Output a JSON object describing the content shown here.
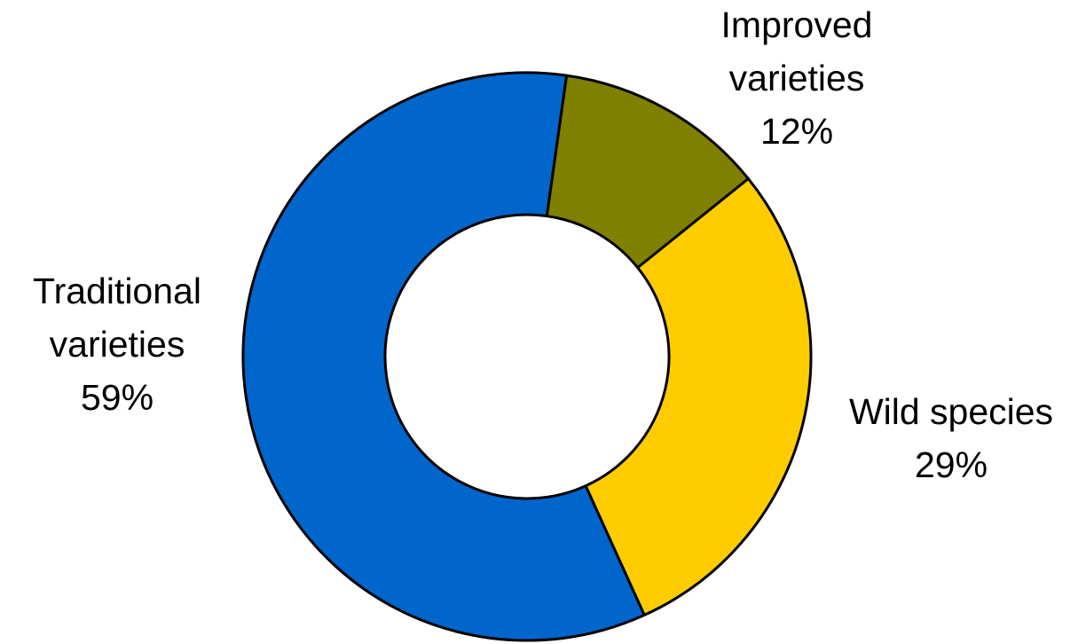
{
  "chart_data": {
    "type": "pie",
    "variant": "donut",
    "title": "",
    "slices": [
      {
        "label": "Improved\nvarieties",
        "value_label": "12%",
        "value": 12,
        "color": "#808000"
      },
      {
        "label": "Wild species",
        "value_label": "29%",
        "value": 29,
        "color": "#FFCC00"
      },
      {
        "label": "Traditional\nvarieties",
        "value_label": "59%",
        "value": 59,
        "color": "#0066CC"
      }
    ],
    "legend": "none",
    "start_angle_deg": 8
  }
}
